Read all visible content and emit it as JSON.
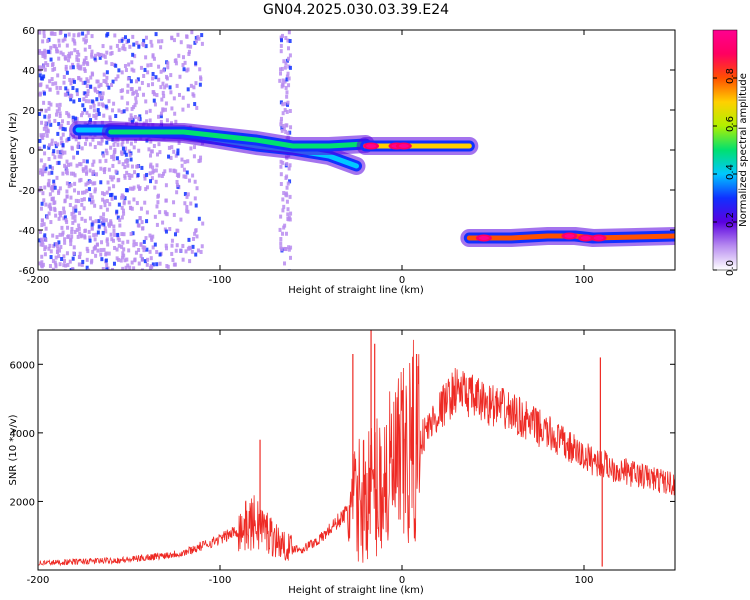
{
  "title": "GN04.2025.030.03.39.E24",
  "chart_data": [
    {
      "type": "heatmap",
      "xlabel": "Height of straight line (km)",
      "ylabel": "Frequency (Hz)",
      "xlim": [
        -200,
        150
      ],
      "ylim": [
        -60,
        60
      ],
      "xticks": [
        -200,
        -100,
        0,
        100
      ],
      "yticks": [
        -60,
        -40,
        -20,
        0,
        20,
        40,
        60
      ],
      "colorbar": {
        "label": "Normalized spectral amplitude",
        "range": [
          0,
          1
        ],
        "ticks": [
          0,
          0.2,
          0.4,
          0.6,
          0.8
        ],
        "colors": [
          "#ffffff",
          "#b88cf0",
          "#5a00e0",
          "#1030ff",
          "#00c8ff",
          "#00e070",
          "#b0f000",
          "#ffd000",
          "#ff5000",
          "#ff0060",
          "#ff0090"
        ]
      },
      "tracks": [
        {
          "x": [
            -178,
            -160,
            -140,
            -120,
            -100,
            -80,
            -60,
            -40,
            -25
          ],
          "freq": [
            10,
            10,
            9,
            8,
            5,
            2,
            0,
            -3,
            -8
          ],
          "amplitude": 0.35
        },
        {
          "x": [
            -160,
            -140,
            -120,
            -100,
            -80,
            -60,
            -40,
            -20
          ],
          "freq": [
            9,
            9,
            9,
            7,
            5,
            2,
            2,
            3
          ],
          "amplitude": 0.45
        },
        {
          "x": [
            -20,
            0,
            37
          ],
          "freq": [
            2,
            2,
            2
          ],
          "amplitude": 0.7
        },
        {
          "x": [
            37,
            60,
            80,
            95,
            105,
            150
          ],
          "freq": [
            -44,
            -44,
            -43,
            -43,
            -44,
            -43
          ],
          "amplitude": 0.75
        }
      ],
      "hotspots": [
        {
          "x": -17,
          "freq": 2
        },
        {
          "x": -3,
          "freq": 2
        },
        {
          "x": 1,
          "freq": 2
        },
        {
          "x": 45,
          "freq": -44
        },
        {
          "x": 92,
          "freq": -43
        },
        {
          "x": 101,
          "freq": -44
        },
        {
          "x": 108,
          "freq": -44
        }
      ],
      "noise_regions": [
        {
          "x": [
            -200,
            -110
          ],
          "freq": [
            -60,
            60
          ]
        },
        {
          "x": [
            -68,
            -62
          ],
          "freq": [
            -60,
            60
          ]
        }
      ]
    },
    {
      "type": "line",
      "xlabel": "Height of straight line (km)",
      "ylabel": "SNR (10 * v/v)",
      "xlim": [
        -200,
        150
      ],
      "ylim": [
        0,
        7000
      ],
      "xticks": [
        -200,
        -100,
        0,
        100
      ],
      "yticks": [
        2000,
        4000,
        6000
      ],
      "color": "#ee2a24",
      "x": [
        -200,
        -150,
        -120,
        -100,
        -85,
        -80,
        -65,
        -55,
        -45,
        -30,
        -20,
        -10,
        0,
        10,
        20,
        30,
        40,
        60,
        80,
        100,
        110,
        120,
        150
      ],
      "y": [
        200,
        300,
        500,
        900,
        1300,
        1400,
        700,
        600,
        900,
        1700,
        2200,
        2600,
        3100,
        3800,
        4600,
        5300,
        5000,
        4600,
        4000,
        3300,
        3100,
        2900,
        2500
      ],
      "spikes": [
        {
          "x": -78,
          "y": 3800
        },
        {
          "x": -27,
          "y": 6300
        },
        {
          "x": -17,
          "y": 7000
        },
        {
          "x": -15,
          "y": 6600
        },
        {
          "x": 8,
          "y": 6300
        },
        {
          "x": 109,
          "y": 6200
        },
        {
          "x": 110,
          "y": 100
        }
      ]
    }
  ]
}
